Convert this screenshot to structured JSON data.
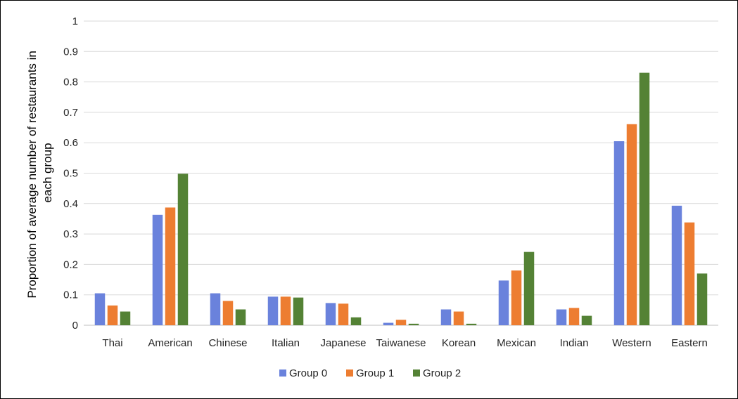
{
  "chart_data": {
    "type": "bar",
    "title": "",
    "xlabel": "",
    "ylabel": "Proportion of average number of restaurants in each group",
    "ylabel_lines": [
      "Proportion of average number of restaurants in",
      "each group"
    ],
    "ylim": [
      0,
      1
    ],
    "yticks": [
      "0",
      "0.1",
      "0.2",
      "0.3",
      "0.4",
      "0.5",
      "0.6",
      "0.7",
      "0.8",
      "0.9",
      "1"
    ],
    "grid": true,
    "legend_position": "bottom",
    "categories": [
      "Thai",
      "American",
      "Chinese",
      "Italian",
      "Japanese",
      "Taiwanese",
      "Korean",
      "Mexican",
      "Indian",
      "Western",
      "Eastern"
    ],
    "series": [
      {
        "name": "Group 0",
        "color": "#6a82dc",
        "values": [
          0.105,
          0.363,
          0.105,
          0.094,
          0.073,
          0.008,
          0.052,
          0.147,
          0.052,
          0.605,
          0.393
        ]
      },
      {
        "name": "Group 1",
        "color": "#ed7d31",
        "values": [
          0.065,
          0.387,
          0.08,
          0.094,
          0.071,
          0.018,
          0.045,
          0.18,
          0.057,
          0.661,
          0.338
        ]
      },
      {
        "name": "Group 2",
        "color": "#548235",
        "values": [
          0.045,
          0.498,
          0.052,
          0.091,
          0.026,
          0.005,
          0.005,
          0.241,
          0.031,
          0.83,
          0.17
        ]
      }
    ]
  }
}
